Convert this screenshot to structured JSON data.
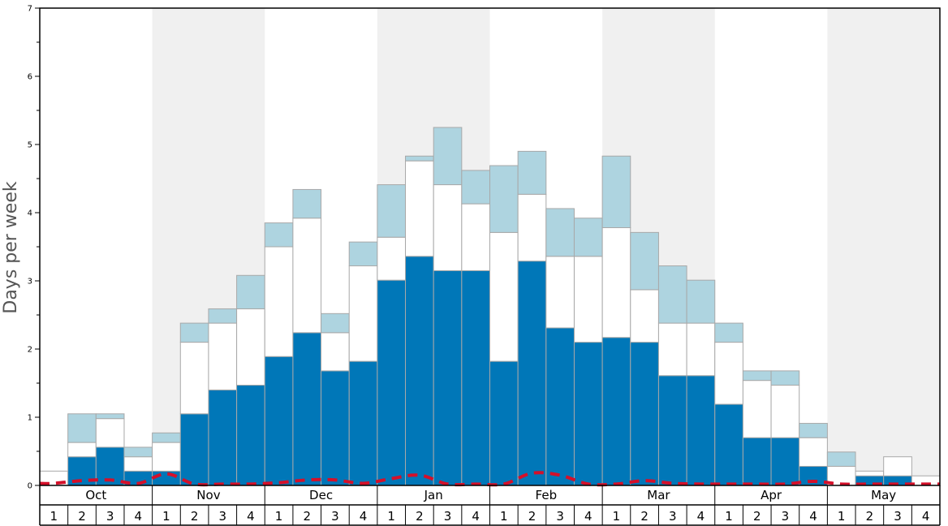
{
  "chart_data": {
    "type": "bar",
    "stacked": true,
    "ylabel": "Days per week",
    "ylim": [
      0,
      7
    ],
    "yticks": [
      "0",
      "1",
      "2",
      "3",
      "4",
      "5",
      "6",
      "7"
    ],
    "months": [
      "Oct",
      "Nov",
      "Dec",
      "Jan",
      "Feb",
      "Mar",
      "Apr",
      "May"
    ],
    "weeks": [
      "1",
      "2",
      "3",
      "4"
    ],
    "categories": [
      "Oct 1",
      "Oct 2",
      "Oct 3",
      "Oct 4",
      "Nov 1",
      "Nov 2",
      "Nov 3",
      "Nov 4",
      "Dec 1",
      "Dec 2",
      "Dec 3",
      "Dec 4",
      "Jan 1",
      "Jan 2",
      "Jan 3",
      "Jan 4",
      "Feb 1",
      "Feb 2",
      "Feb 3",
      "Feb 4",
      "Mar 1",
      "Mar 2",
      "Mar 3",
      "Mar 4",
      "Apr 1",
      "Apr 2",
      "Apr 3",
      "Apr 4",
      "May 1",
      "May 2",
      "May 3",
      "May 4"
    ],
    "series": [
      {
        "color": "#0077b8",
        "values": [
          0,
          0.42,
          0.56,
          0.21,
          0.21,
          1.05,
          1.4,
          1.47,
          1.89,
          2.24,
          1.68,
          1.82,
          3.01,
          3.36,
          3.15,
          3.15,
          1.82,
          3.29,
          2.31,
          2.1,
          2.17,
          2.1,
          1.61,
          1.61,
          1.19,
          0.7,
          0.7,
          0.28,
          0,
          0.14,
          0.14,
          0
        ]
      },
      {
        "color": "#ffffff",
        "values": [
          0.21,
          0.21,
          0.42,
          0.21,
          0.42,
          1.05,
          0.98,
          1.12,
          1.61,
          1.68,
          0.56,
          1.4,
          0.63,
          1.4,
          1.26,
          0.98,
          1.89,
          0.98,
          1.05,
          1.26,
          1.61,
          0.77,
          0.77,
          0.77,
          0.91,
          0.84,
          0.77,
          0.42,
          0.28,
          0.07,
          0.28,
          0.14
        ]
      },
      {
        "color": "#aed4e0",
        "values": [
          0,
          0.42,
          0.07,
          0.14,
          0.14,
          0.28,
          0.21,
          0.49,
          0.35,
          0.42,
          0.28,
          0.35,
          0.77,
          0.07,
          0.84,
          0.49,
          0.98,
          0.63,
          0.7,
          0.56,
          1.05,
          0.84,
          0.84,
          0.63,
          0.28,
          0.14,
          0.21,
          0.21,
          0.21,
          0,
          0,
          0
        ]
      }
    ],
    "dashed_line": {
      "color": "#d4102a",
      "values": [
        0.03,
        0.07,
        0.08,
        0.03,
        0.17,
        0.02,
        0.02,
        0.02,
        0.04,
        0.08,
        0.08,
        0.03,
        0.1,
        0.15,
        0.02,
        0.02,
        0.02,
        0.18,
        0.15,
        0.02,
        0.02,
        0.07,
        0.03,
        0.02,
        0.02,
        0.02,
        0.02,
        0.06,
        0.02,
        0.02,
        0.02,
        0.02
      ]
    },
    "shaded_months": [
      "Nov",
      "Jan",
      "Mar",
      "May"
    ],
    "grid": false,
    "legend": "none"
  }
}
